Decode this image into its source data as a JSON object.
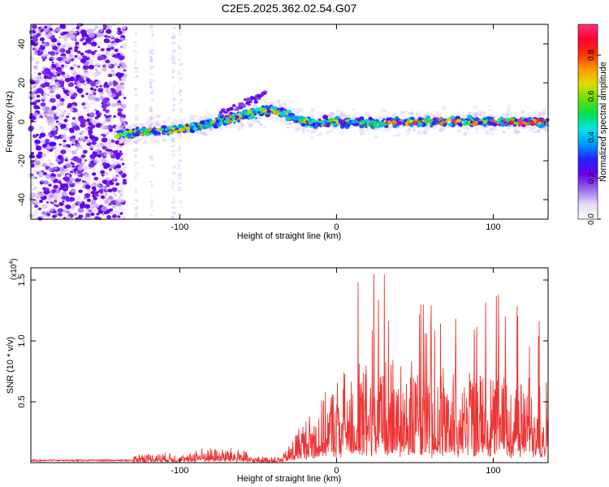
{
  "chart_data": [
    {
      "type": "heatmap",
      "title": "C2E5.2025.362.02.54.G07",
      "xlabel": "Height of straight line (km)",
      "ylabel": "Frequency (Hz)",
      "xlim": [
        -195,
        135
      ],
      "ylim": [
        -50,
        50
      ],
      "x_ticks": [
        -100,
        0,
        100
      ],
      "y_ticks": [
        -40,
        -20,
        0,
        20,
        40
      ],
      "x_tick_labels": [
        "-100",
        "0",
        "100"
      ],
      "y_tick_labels": [
        "-40",
        "-20",
        "0",
        "20",
        "40"
      ],
      "ridge": {
        "x": [
          -140,
          -120,
          -100,
          -80,
          -60,
          -45,
          -35,
          -25,
          -15,
          0,
          20,
          40,
          60,
          80,
          100,
          120,
          135
        ],
        "y": [
          -7,
          -5,
          -4,
          -1,
          3,
          6,
          5,
          1,
          -1,
          0,
          -1,
          0,
          0,
          0,
          0,
          0,
          0
        ]
      },
      "colorbar": {
        "label": "Normalized spectral amplitude",
        "range": [
          0.0,
          0.95
        ],
        "ticks": [
          0.0,
          0.2,
          0.4,
          0.6,
          0.8
        ],
        "tick_labels": [
          "0.0",
          "0.2",
          "0.4",
          "0.6",
          "0.8"
        ],
        "colors": [
          "#ffffff",
          "#e6d9f7",
          "#9966ee",
          "#6a00ee",
          "#2222ff",
          "#0099ff",
          "#00e5e5",
          "#00e050",
          "#66e000",
          "#dddd00",
          "#ff9900",
          "#ff3300",
          "#ff0033",
          "#ff3377"
        ]
      }
    },
    {
      "type": "line",
      "xlabel": "Height of straight line (km)",
      "ylabel": "SNR (10 * v/v)",
      "scale_label": "(x10",
      "scale_exp": "4",
      "scale_close": ")",
      "xlim": [
        -195,
        135
      ],
      "ylim": [
        0.0,
        1.6
      ],
      "x_ticks": [
        -100,
        0,
        100
      ],
      "y_ticks": [
        0.5,
        1.0,
        1.5
      ],
      "x_tick_labels": [
        "-100",
        "0",
        "100"
      ],
      "y_tick_labels": [
        "0.5",
        "1.0",
        "1.5"
      ],
      "series_color": "#ee3333",
      "envelope": {
        "x": [
          -195,
          -130,
          -128,
          -105,
          -95,
          -90,
          -60,
          -55,
          -35,
          -30,
          -25,
          -10,
          0,
          10,
          20,
          30,
          40,
          50,
          60,
          70,
          80,
          90,
          100,
          110,
          120,
          135
        ],
        "y": [
          0.015,
          0.025,
          0.08,
          0.08,
          0.06,
          0.12,
          0.12,
          0.05,
          0.05,
          0.15,
          0.3,
          0.5,
          0.7,
          0.8,
          0.82,
          0.85,
          0.85,
          0.8,
          0.75,
          0.8,
          0.8,
          0.75,
          0.75,
          0.7,
          0.7,
          0.7
        ]
      }
    }
  ]
}
